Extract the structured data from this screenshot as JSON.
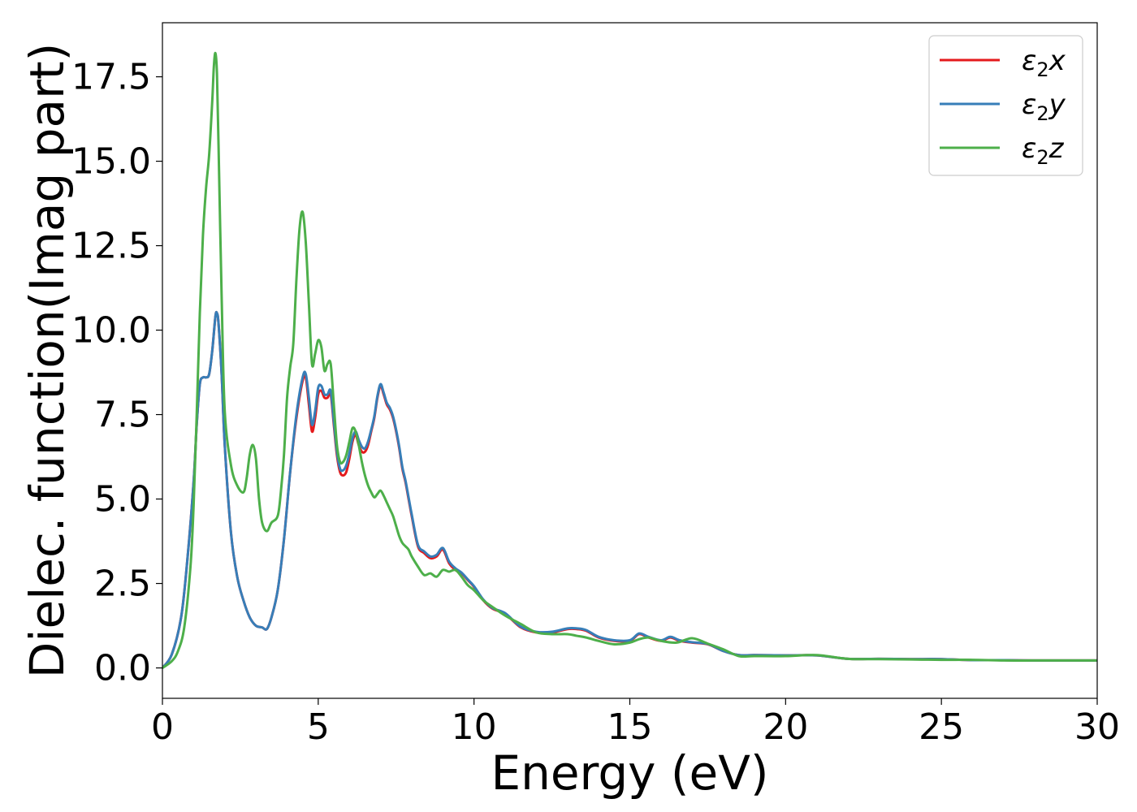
{
  "chart_data": {
    "type": "line",
    "title": "",
    "xlabel": "Energy (eV)",
    "ylabel": "Dielec. function(Imag part)",
    "xlim": [
      0,
      30
    ],
    "ylim": [
      -0.9,
      19.1
    ],
    "xticks": [
      0,
      5,
      10,
      15,
      20,
      25,
      30
    ],
    "xtick_labels": [
      "0",
      "5",
      "10",
      "15",
      "20",
      "25",
      "30"
    ],
    "yticks": [
      0.0,
      2.5,
      5.0,
      7.5,
      10.0,
      12.5,
      15.0,
      17.5
    ],
    "ytick_labels": [
      "0.0",
      "2.5",
      "5.0",
      "7.5",
      "10.0",
      "12.5",
      "15.0",
      "17.5"
    ],
    "grid": false,
    "legend_position": "top-right",
    "series": [
      {
        "name": "ε2x",
        "legend_main": "ε",
        "legend_sub": "2",
        "legend_var": "x",
        "color": "#e41a1c",
        "x": [
          0,
          0.3,
          0.6,
          0.8,
          1.0,
          1.1,
          1.2,
          1.3,
          1.4,
          1.5,
          1.6,
          1.7,
          1.75,
          1.8,
          1.9,
          2.0,
          2.2,
          2.4,
          2.6,
          2.8,
          3.0,
          3.2,
          3.35,
          3.5,
          3.7,
          3.9,
          4.1,
          4.3,
          4.5,
          4.6,
          4.7,
          4.8,
          4.9,
          5.0,
          5.1,
          5.2,
          5.3,
          5.4,
          5.5,
          5.6,
          5.7,
          5.8,
          5.9,
          6.0,
          6.1,
          6.2,
          6.3,
          6.4,
          6.5,
          6.6,
          6.7,
          6.8,
          6.9,
          7.0,
          7.1,
          7.2,
          7.3,
          7.4,
          7.5,
          7.6,
          7.7,
          7.8,
          7.9,
          8.0,
          8.2,
          8.4,
          8.6,
          8.8,
          9.0,
          9.2,
          9.4,
          9.6,
          9.8,
          10.0,
          10.3,
          10.6,
          11.0,
          11.5,
          12.0,
          12.5,
          13.0,
          13.3,
          13.6,
          14.0,
          14.5,
          15.0,
          15.3,
          15.6,
          16.0,
          16.3,
          16.6,
          17.0,
          17.5,
          18.0,
          18.5,
          19.0,
          20.0,
          21.0,
          22.0,
          23.0,
          24.0,
          25.0,
          26.0,
          27.0,
          28.0,
          29.0,
          30.0
        ],
        "values": [
          0.0,
          0.4,
          1.5,
          3.2,
          5.5,
          7.2,
          8.4,
          8.6,
          8.6,
          8.7,
          9.4,
          10.4,
          10.5,
          10.2,
          8.7,
          6.6,
          4.0,
          2.7,
          2.0,
          1.5,
          1.25,
          1.2,
          1.15,
          1.5,
          2.3,
          3.8,
          5.8,
          7.4,
          8.5,
          8.6,
          7.8,
          7.0,
          7.4,
          8.1,
          8.2,
          8.0,
          8.0,
          8.1,
          7.2,
          6.3,
          5.8,
          5.7,
          5.8,
          6.2,
          6.7,
          6.9,
          6.6,
          6.4,
          6.4,
          6.6,
          7.0,
          7.4,
          8.0,
          8.35,
          8.1,
          7.8,
          7.65,
          7.4,
          7.0,
          6.5,
          5.9,
          5.5,
          5.0,
          4.5,
          3.6,
          3.4,
          3.25,
          3.3,
          3.5,
          3.1,
          2.9,
          2.8,
          2.6,
          2.4,
          2.0,
          1.75,
          1.6,
          1.2,
          1.05,
          1.05,
          1.15,
          1.15,
          1.1,
          0.9,
          0.8,
          0.8,
          1.0,
          0.9,
          0.8,
          0.9,
          0.8,
          0.75,
          0.7,
          0.5,
          0.38,
          0.38,
          0.37,
          0.37,
          0.27,
          0.27,
          0.26,
          0.26,
          0.23,
          0.23,
          0.22,
          0.22,
          0.22
        ]
      },
      {
        "name": "ε2y",
        "legend_main": "ε",
        "legend_sub": "2",
        "legend_var": "y",
        "color": "#377eb8",
        "x": [
          0,
          0.3,
          0.6,
          0.8,
          1.0,
          1.1,
          1.2,
          1.3,
          1.4,
          1.5,
          1.6,
          1.7,
          1.75,
          1.8,
          1.9,
          2.0,
          2.2,
          2.4,
          2.6,
          2.8,
          3.0,
          3.2,
          3.35,
          3.5,
          3.7,
          3.9,
          4.1,
          4.3,
          4.5,
          4.6,
          4.7,
          4.8,
          4.9,
          5.0,
          5.1,
          5.2,
          5.3,
          5.4,
          5.5,
          5.6,
          5.7,
          5.8,
          5.9,
          6.0,
          6.1,
          6.2,
          6.3,
          6.4,
          6.5,
          6.6,
          6.7,
          6.8,
          6.9,
          7.0,
          7.1,
          7.2,
          7.3,
          7.4,
          7.5,
          7.6,
          7.7,
          7.8,
          7.9,
          8.0,
          8.2,
          8.4,
          8.6,
          8.8,
          9.0,
          9.2,
          9.4,
          9.6,
          9.8,
          10.0,
          10.3,
          10.6,
          11.0,
          11.5,
          12.0,
          12.5,
          13.0,
          13.3,
          13.6,
          14.0,
          14.5,
          15.0,
          15.3,
          15.6,
          16.0,
          16.3,
          16.6,
          17.0,
          17.5,
          18.0,
          18.5,
          19.0,
          20.0,
          21.0,
          22.0,
          23.0,
          24.0,
          25.0,
          26.0,
          27.0,
          28.0,
          29.0,
          30.0
        ],
        "values": [
          0.0,
          0.4,
          1.5,
          3.2,
          5.5,
          7.2,
          8.4,
          8.6,
          8.6,
          8.7,
          9.4,
          10.4,
          10.5,
          10.2,
          8.7,
          6.6,
          4.0,
          2.7,
          2.0,
          1.5,
          1.25,
          1.2,
          1.15,
          1.5,
          2.3,
          3.8,
          5.8,
          7.5,
          8.6,
          8.7,
          8.0,
          7.2,
          7.6,
          8.3,
          8.35,
          8.1,
          8.1,
          8.2,
          7.3,
          6.4,
          5.9,
          5.85,
          6.0,
          6.35,
          6.8,
          7.0,
          6.75,
          6.55,
          6.5,
          6.7,
          7.05,
          7.45,
          8.05,
          8.4,
          8.15,
          7.85,
          7.7,
          7.45,
          7.05,
          6.55,
          5.95,
          5.55,
          5.05,
          4.55,
          3.65,
          3.45,
          3.3,
          3.35,
          3.55,
          3.15,
          2.95,
          2.82,
          2.62,
          2.42,
          2.02,
          1.77,
          1.62,
          1.22,
          1.07,
          1.07,
          1.17,
          1.17,
          1.12,
          0.92,
          0.82,
          0.82,
          1.02,
          0.92,
          0.82,
          0.92,
          0.82,
          0.76,
          0.71,
          0.5,
          0.38,
          0.38,
          0.37,
          0.37,
          0.27,
          0.27,
          0.26,
          0.26,
          0.23,
          0.23,
          0.22,
          0.22,
          0.22
        ]
      },
      {
        "name": "ε2z",
        "legend_main": "ε",
        "legend_sub": "2",
        "legend_var": "z",
        "color": "#4daf4a",
        "x": [
          0,
          0.3,
          0.5,
          0.7,
          0.9,
          1.0,
          1.1,
          1.2,
          1.3,
          1.4,
          1.5,
          1.6,
          1.65,
          1.7,
          1.75,
          1.8,
          1.9,
          2.0,
          2.2,
          2.4,
          2.6,
          2.7,
          2.8,
          2.9,
          3.0,
          3.1,
          3.2,
          3.35,
          3.5,
          3.7,
          3.8,
          3.9,
          4.0,
          4.1,
          4.2,
          4.3,
          4.4,
          4.5,
          4.6,
          4.7,
          4.8,
          4.9,
          5.0,
          5.1,
          5.2,
          5.3,
          5.4,
          5.5,
          5.6,
          5.7,
          5.8,
          5.9,
          6.0,
          6.1,
          6.2,
          6.3,
          6.4,
          6.5,
          6.6,
          6.7,
          6.8,
          6.9,
          7.0,
          7.1,
          7.2,
          7.3,
          7.4,
          7.5,
          7.6,
          7.7,
          7.8,
          7.9,
          8.0,
          8.2,
          8.4,
          8.6,
          8.8,
          9.0,
          9.2,
          9.4,
          9.6,
          9.8,
          10.0,
          10.3,
          10.6,
          11.0,
          11.5,
          12.0,
          12.5,
          13.0,
          13.3,
          13.6,
          14.0,
          14.5,
          15.0,
          15.3,
          15.6,
          16.0,
          16.5,
          17.0,
          17.5,
          18.0,
          18.5,
          19.0,
          20.0,
          21.0,
          22.0,
          23.0,
          24.0,
          25.0,
          26.0,
          27.0,
          28.0,
          29.0,
          30.0
        ],
        "values": [
          0.0,
          0.2,
          0.5,
          1.2,
          3.0,
          4.8,
          7.5,
          10.5,
          12.8,
          14.2,
          15.2,
          16.8,
          17.8,
          18.2,
          17.6,
          15.5,
          11.0,
          7.6,
          6.0,
          5.4,
          5.2,
          5.6,
          6.3,
          6.6,
          6.2,
          5.0,
          4.3,
          4.05,
          4.3,
          4.5,
          5.2,
          6.3,
          8.0,
          8.9,
          9.6,
          11.5,
          13.0,
          13.5,
          12.6,
          10.8,
          9.0,
          9.3,
          9.7,
          9.5,
          8.8,
          9.0,
          9.0,
          7.8,
          6.6,
          6.1,
          6.1,
          6.3,
          6.7,
          7.1,
          7.0,
          6.6,
          6.1,
          5.7,
          5.4,
          5.2,
          5.05,
          5.15,
          5.25,
          5.1,
          4.9,
          4.7,
          4.5,
          4.2,
          3.9,
          3.7,
          3.6,
          3.5,
          3.3,
          3.0,
          2.75,
          2.8,
          2.7,
          2.9,
          2.85,
          2.9,
          2.7,
          2.45,
          2.3,
          2.0,
          1.8,
          1.55,
          1.3,
          1.05,
          1.0,
          1.0,
          0.95,
          0.9,
          0.8,
          0.7,
          0.75,
          0.85,
          0.9,
          0.8,
          0.75,
          0.88,
          0.72,
          0.55,
          0.35,
          0.35,
          0.35,
          0.38,
          0.27,
          0.26,
          0.25,
          0.24,
          0.24,
          0.22,
          0.22,
          0.22,
          0.22
        ]
      }
    ]
  }
}
